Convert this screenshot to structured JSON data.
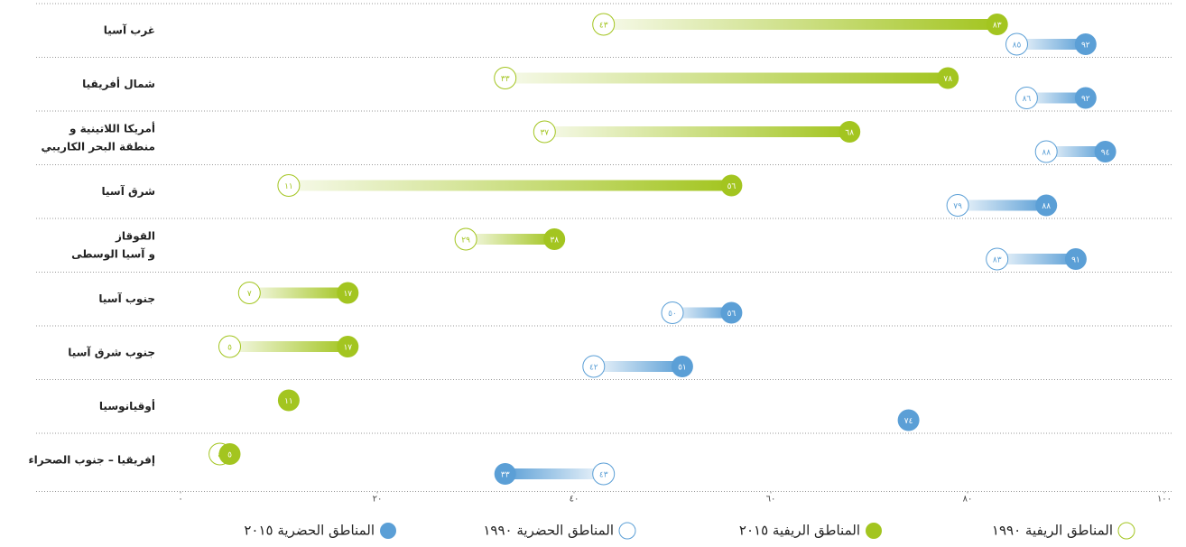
{
  "chart_data": {
    "type": "dumbbell",
    "categories": [
      [
        "غرب آسيا"
      ],
      [
        "شمال أفريقيا"
      ],
      [
        "أمريكا اللاتينية و",
        "منطقة البحر الكاريبي"
      ],
      [
        "شرق آسيا"
      ],
      [
        "القوقاز",
        "و آسيا الوسطى"
      ],
      [
        "جنوب آسيا"
      ],
      [
        "جنوب شرق آسيا"
      ],
      [
        "أوقيانوسيا"
      ],
      [
        "إفريقيا – جنوب الصحراء"
      ]
    ],
    "series": [
      {
        "name": "المناطق الريفية ١٩٩٠",
        "color": "#a3c520",
        "marker": "hollow",
        "group": "rural",
        "values": [
          43,
          33,
          37,
          11,
          29,
          7,
          5,
          null,
          4
        ],
        "value_labels": [
          "٤٣",
          "٣٣",
          "٣٧",
          "١١",
          "٢٩",
          "٧",
          "٥",
          null,
          "٤"
        ]
      },
      {
        "name": "المناطق الريفية ٢٠١٥",
        "color": "#a3c520",
        "marker": "filled",
        "group": "rural",
        "values": [
          83,
          78,
          68,
          56,
          38,
          17,
          17,
          11,
          5
        ],
        "value_labels": [
          "٨٣",
          "٧٨",
          "٦٨",
          "٥٦",
          "٣٨",
          "١٧",
          "١٧",
          "١١",
          "٥"
        ]
      },
      {
        "name": "المناطق الحضرية ١٩٩٠",
        "color": "#5b9fd6",
        "marker": "hollow",
        "group": "urban",
        "values": [
          85,
          86,
          88,
          79,
          83,
          50,
          42,
          null,
          43
        ],
        "value_labels": [
          "٨٥",
          "٨٦",
          "٨٨",
          "٧٩",
          "٨٣",
          "٥٠",
          "٤٢",
          null,
          "٤٣"
        ]
      },
      {
        "name": "المناطق الحضرية ٢٠١٥",
        "color": "#5b9fd6",
        "marker": "filled",
        "group": "urban",
        "values": [
          92,
          92,
          94,
          88,
          91,
          56,
          51,
          74,
          33
        ],
        "value_labels": [
          "٩٢",
          "٩٢",
          "٩٤",
          "٨٨",
          "٩١",
          "٥٦",
          "٥١",
          "٧٤",
          "٣٣"
        ]
      }
    ],
    "xlim": [
      0,
      100
    ],
    "xticks": [
      {
        "value": 0,
        "label": "٠"
      },
      {
        "value": 20,
        "label": "٢٠"
      },
      {
        "value": 40,
        "label": "٤٠"
      },
      {
        "value": 60,
        "label": "٦٠"
      },
      {
        "value": 80,
        "label": "٨٠"
      },
      {
        "value": 100,
        "label": "١٠٠"
      }
    ]
  }
}
